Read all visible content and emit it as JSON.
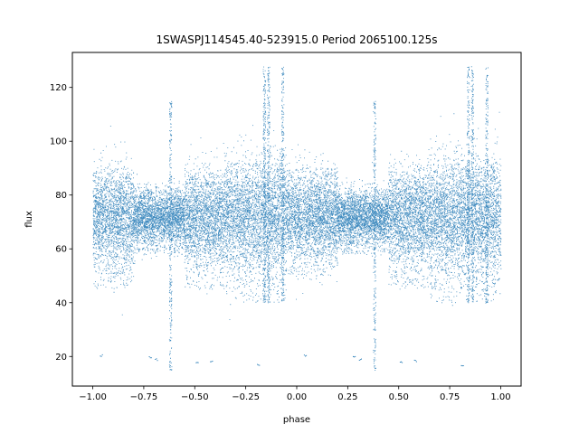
{
  "chart_data": {
    "type": "scatter",
    "title": "1SWASPJ114545.40-523915.0 Period 2065100.125s",
    "xlabel": "phase",
    "ylabel": "flux",
    "xlim": [
      -1.1,
      1.1
    ],
    "ylim": [
      9,
      133
    ],
    "xticks": [
      -1.0,
      -0.75,
      -0.5,
      -0.25,
      0.0,
      0.25,
      0.5,
      0.75,
      1.0
    ],
    "xtick_labels": [
      "−1.00",
      "−0.75",
      "−0.50",
      "−0.25",
      "0.00",
      "0.25",
      "0.50",
      "0.75",
      "1.00"
    ],
    "yticks": [
      20,
      40,
      60,
      80,
      100,
      120
    ],
    "ytick_labels": [
      "20",
      "40",
      "60",
      "80",
      "100",
      "120"
    ],
    "grid": false,
    "legend": "none",
    "marker_color": "#1f77b4",
    "phase_range": [
      -1.0,
      1.0
    ],
    "baseline_flux": 72,
    "typical_band": [
      55,
      90
    ],
    "band_segments": [
      {
        "x0": -1.0,
        "x1": -0.8,
        "low": 45,
        "high": 90
      },
      {
        "x0": -0.8,
        "x1": -0.55,
        "low": 58,
        "high": 82
      },
      {
        "x0": -0.55,
        "x1": -0.35,
        "low": 45,
        "high": 88
      },
      {
        "x0": -0.35,
        "x1": -0.05,
        "low": 40,
        "high": 92
      },
      {
        "x0": -0.05,
        "x1": 0.2,
        "low": 50,
        "high": 90
      },
      {
        "x0": 0.2,
        "x1": 0.45,
        "low": 58,
        "high": 82
      },
      {
        "x0": 0.45,
        "x1": 0.65,
        "low": 45,
        "high": 88
      },
      {
        "x0": 0.65,
        "x1": 1.0,
        "low": 40,
        "high": 92
      }
    ],
    "spike_columns": [
      {
        "x": -0.62,
        "low": 15,
        "high": 115
      },
      {
        "x": -0.16,
        "low": 40,
        "high": 128
      },
      {
        "x": -0.14,
        "low": 40,
        "high": 128
      },
      {
        "x": -0.07,
        "low": 40,
        "high": 128
      },
      {
        "x": 0.38,
        "low": 15,
        "high": 115
      },
      {
        "x": 0.84,
        "low": 40,
        "high": 128
      },
      {
        "x": 0.86,
        "low": 40,
        "high": 128
      },
      {
        "x": 0.93,
        "low": 40,
        "high": 128
      }
    ],
    "low_outliers": [
      {
        "x": -0.96,
        "y": 20.5
      },
      {
        "x": -0.72,
        "y": 20
      },
      {
        "x": -0.69,
        "y": 19
      },
      {
        "x": -0.49,
        "y": 18
      },
      {
        "x": -0.42,
        "y": 18.5
      },
      {
        "x": -0.19,
        "y": 17
      },
      {
        "x": 0.04,
        "y": 20.5
      },
      {
        "x": 0.28,
        "y": 20
      },
      {
        "x": 0.31,
        "y": 19
      },
      {
        "x": 0.51,
        "y": 18
      },
      {
        "x": 0.58,
        "y": 18.5
      },
      {
        "x": 0.81,
        "y": 17
      }
    ]
  }
}
